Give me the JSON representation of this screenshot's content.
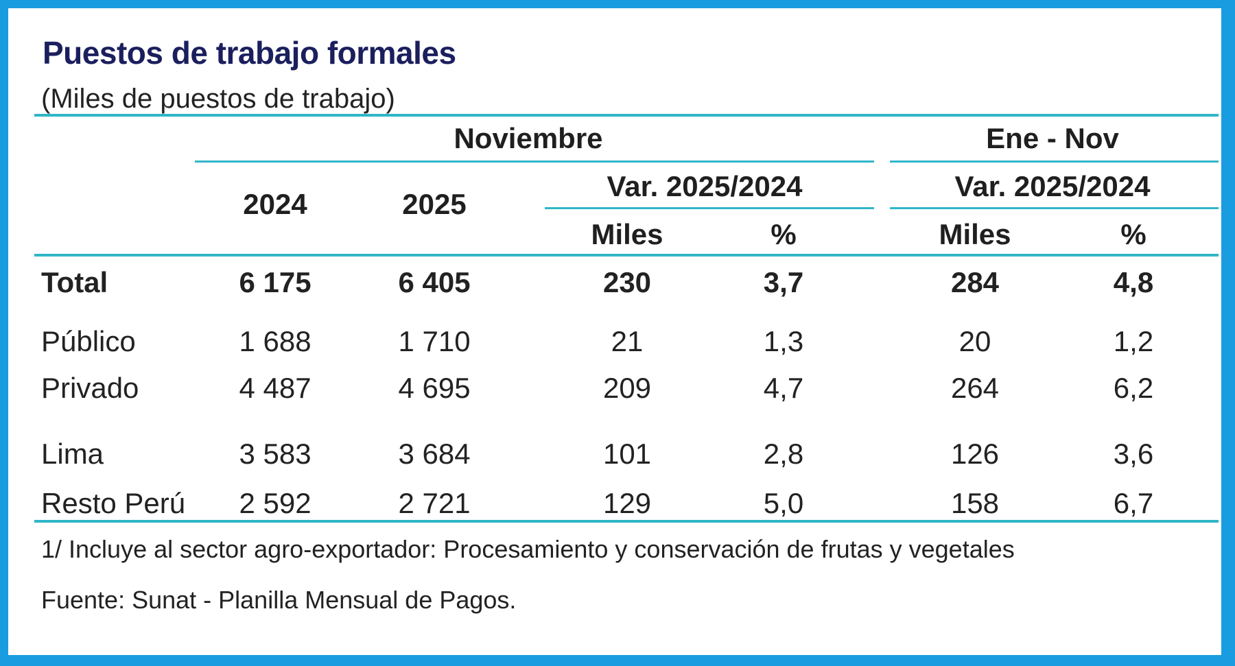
{
  "title": "Puestos de trabajo formales",
  "subtitle": "(Miles de puestos de trabajo)",
  "headers": {
    "group_nov": "Noviembre",
    "group_ene_nov": "Ene - Nov",
    "year_2024": "2024",
    "year_2025": "2025",
    "var_nov": "Var. 2025/2024",
    "var_ene_nov": "Var. 2025/2024",
    "miles_nov": "Miles",
    "pct_nov": "%",
    "miles_ene_nov": "Miles",
    "pct_ene_nov": "%"
  },
  "rows": [
    {
      "label": "Total",
      "y2024": "6 175",
      "y2025": "6 405",
      "nov_miles": "230",
      "nov_pct": "3,7",
      "ytd_miles": "284",
      "ytd_pct": "4,8"
    },
    {
      "label": "Público",
      "y2024": "1 688",
      "y2025": "1 710",
      "nov_miles": "21",
      "nov_pct": "1,3",
      "ytd_miles": "20",
      "ytd_pct": "1,2"
    },
    {
      "label": "Privado",
      "y2024": "4 487",
      "y2025": "4 695",
      "nov_miles": "209",
      "nov_pct": "4,7",
      "ytd_miles": "264",
      "ytd_pct": "6,2"
    },
    {
      "label": "Lima",
      "y2024": "3 583",
      "y2025": "3 684",
      "nov_miles": "101",
      "nov_pct": "2,8",
      "ytd_miles": "126",
      "ytd_pct": "3,6"
    },
    {
      "label": "Resto Perú",
      "y2024": "2 592",
      "y2025": "2 721",
      "nov_miles": "129",
      "nov_pct": "5,0",
      "ytd_miles": "158",
      "ytd_pct": "6,7"
    }
  ],
  "notes": {
    "footnote": "1/ Incluye al sector agro-exportador: Procesamiento y conservación de frutas y vegetales",
    "source": "Fuente: Sunat - Planilla Mensual de Pagos."
  },
  "colors": {
    "frame": "#1a9ce0",
    "rule": "#2fb6c8",
    "title": "#1b1f5e"
  }
}
